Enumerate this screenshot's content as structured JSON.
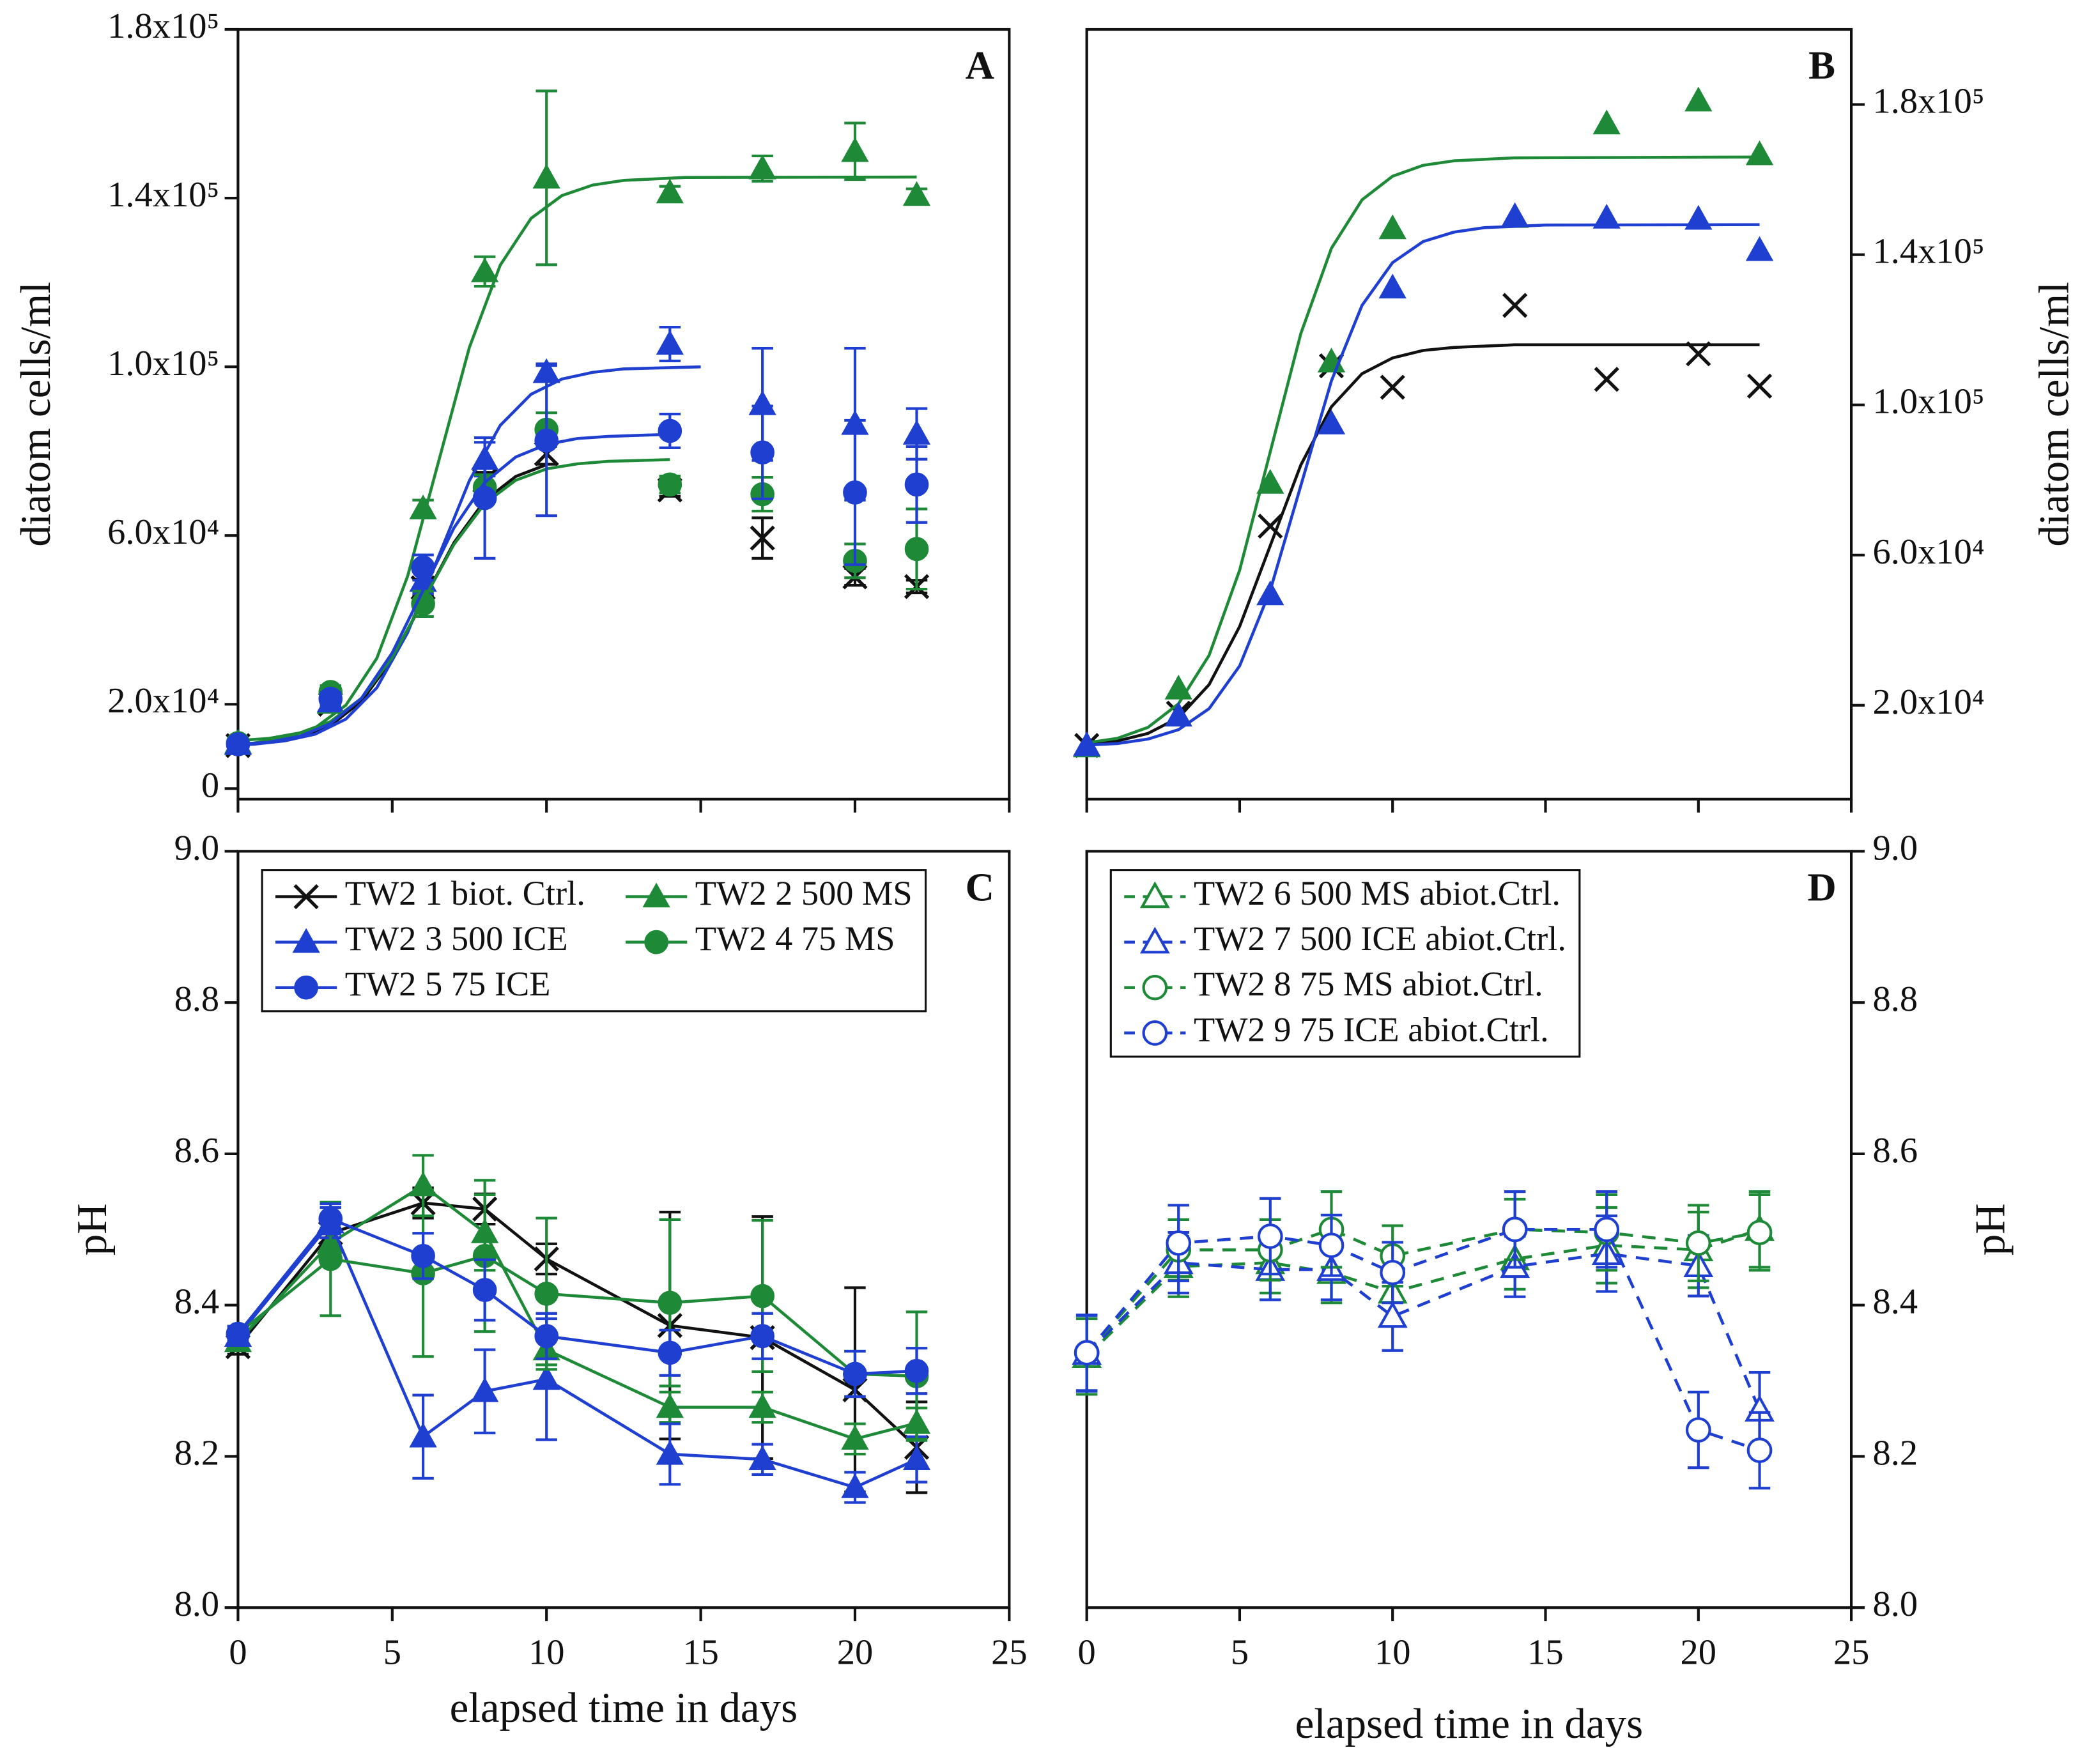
{
  "chart_data": [
    {
      "type": "scatter",
      "panel": "A",
      "ylabel": "diatom cells/ml",
      "yaxis_side": "left",
      "xtick_labels": false,
      "xlim": [
        0,
        25
      ],
      "xticks": [
        0,
        5,
        10,
        15,
        20,
        25
      ],
      "ylim": [
        -2500,
        180000
      ],
      "yticks": [
        0,
        {
          "value": 20000,
          "label": "2.0x10⁴"
        },
        {
          "value": 60000,
          "label": "6.0x10⁴"
        },
        {
          "value": 100000,
          "label": "1.0x10⁵"
        },
        {
          "value": 140000,
          "label": "1.4x10⁵"
        },
        {
          "value": 180000,
          "label": "1.8x10⁵"
        }
      ],
      "x": [
        0,
        3,
        6,
        8,
        10,
        14,
        17,
        20,
        22
      ],
      "series": [
        {
          "marker": "x",
          "color": "#111111",
          "values": [
            10200,
            20000,
            47600,
            73000,
            79400,
            70800,
            59400,
            50200,
            47900
          ],
          "errors": [
            1000,
            1000,
            2000,
            2000,
            2500,
            1500,
            4800,
            2000,
            1500
          ],
          "fit": {
            "x": [
              0,
              1,
              2,
              3,
              4,
              5,
              6,
              7,
              8,
              9,
              10
            ],
            "values": [
              10400,
              11000,
              12200,
              15000,
              20700,
              30700,
              44500,
              58300,
              68300,
              74000,
              76800
            ]
          }
        },
        {
          "marker": "triangle",
          "color": "#1e8a38",
          "values": [
            10800,
            20300,
            66400,
            122600,
            144800,
            141300,
            147000,
            151100,
            140700
          ],
          "errors": [
            1000,
            1500,
            2000,
            3500,
            20600,
            1500,
            3000,
            6700,
            1500
          ],
          "fit": {
            "x": [
              0,
              0.5,
              1.5,
              2.5,
              3.5,
              4.5,
              5.5,
              6.5,
              7.5,
              8.5,
              9.5,
              10.5,
              11.5,
              12.5,
              14.5,
              22
            ],
            "values": [
              10500,
              10800,
              11900,
              14400,
              19800,
              30900,
              50400,
              77500,
              104600,
              124100,
              135200,
              140600,
              143100,
              144200,
              144900,
              145000
            ]
          }
        },
        {
          "marker": "triangle",
          "color": "#1f3fd0",
          "values": [
            10500,
            20600,
            49200,
            78100,
            98700,
            105400,
            91100,
            86400,
            84100
          ],
          "errors": [
            1000,
            1500,
            3000,
            4000,
            2000,
            4000,
            13300,
            18000,
            6000
          ],
          "fit": {
            "x": [
              0,
              0.5,
              1.5,
              2.5,
              3.5,
              4.5,
              5.5,
              6.5,
              7.5,
              8.5,
              9.5,
              10.5,
              11.5,
              12.5,
              15
            ],
            "values": [
              10400,
              10500,
              11300,
              12900,
              16500,
              23900,
              37000,
              55000,
              73000,
              86100,
              93500,
              97100,
              98700,
              99500,
              100000
            ]
          }
        },
        {
          "marker": "circle",
          "color": "#1e8a38",
          "values": [
            10800,
            22900,
            43800,
            71400,
            85100,
            72100,
            69800,
            54000,
            56800
          ],
          "errors": [
            1000,
            1500,
            3000,
            3000,
            4000,
            2000,
            4000,
            4000,
            9500
          ],
          "fit": {
            "x": [
              0,
              1,
              2,
              3,
              4,
              5,
              6,
              7,
              8,
              9,
              10,
              11,
              12,
              14
            ],
            "values": [
              11400,
              11900,
              13200,
              15900,
              21400,
              31100,
              44500,
              57900,
              67600,
              73100,
              75800,
              77000,
              77600,
              78000
            ]
          }
        },
        {
          "marker": "circle",
          "color": "#1f3fd0",
          "values": [
            10500,
            21300,
            52400,
            68900,
            82500,
            84800,
            79700,
            70200,
            72100
          ],
          "errors": [
            1000,
            1500,
            3000,
            14300,
            17800,
            4000,
            11000,
            17100,
            9000
          ],
          "fit": {
            "x": [
              0,
              1,
              2,
              3,
              4,
              5,
              6,
              7,
              8,
              9,
              10,
              11,
              12,
              14
            ],
            "values": [
              10500,
              11000,
              12400,
              15400,
              21400,
              32200,
              47000,
              61800,
              72600,
              78600,
              81600,
              83000,
              83500,
              84000
            ]
          }
        }
      ]
    },
    {
      "type": "scatter",
      "panel": "B",
      "ylabel": "diatom cells/ml",
      "yaxis_side": "right",
      "xtick_labels": false,
      "xlim": [
        0,
        25
      ],
      "xticks": [
        0,
        5,
        10,
        15,
        20,
        25
      ],
      "ylim": [
        -5000,
        200000
      ],
      "yticks": [
        {
          "value": 20000,
          "label": "2.0x10⁴"
        },
        {
          "value": 60000,
          "label": "6.0x10⁴"
        },
        {
          "value": 100000,
          "label": "1.0x10⁵"
        },
        {
          "value": 140000,
          "label": "1.4x10⁵"
        },
        {
          "value": 180000,
          "label": "1.8x10⁵"
        }
      ],
      "x": [
        0,
        3,
        6,
        8,
        10,
        14,
        17,
        20,
        22
      ],
      "series": [
        {
          "marker": "x",
          "color": "#111111",
          "values": [
            9300,
            17900,
            67700,
            110400,
            104700,
            126500,
            106800,
            113600,
            105000
          ],
          "fit": {
            "x": [
              0,
              1,
              2,
              3,
              4,
              5,
              6,
              7,
              8,
              9,
              10,
              11,
              12,
              14,
              22
            ],
            "values": [
              9700,
              10500,
              12500,
              16700,
              25500,
              41000,
              62500,
              84000,
              99500,
              108300,
              112500,
              114500,
              115300,
              116000,
              116000
            ]
          }
        },
        {
          "marker": "triangle",
          "color": "#1e8a38",
          "values": [
            9000,
            24400,
            79200,
            111500,
            147000,
            150000,
            174900,
            181000,
            166700
          ],
          "fit": {
            "x": [
              0,
              1,
              2,
              3,
              4,
              5,
              6,
              7,
              8,
              9,
              10,
              11,
              12,
              14,
              22
            ],
            "values": [
              10000,
              11200,
              14100,
              20400,
              33300,
              56000,
              87500,
              119000,
              141700,
              154600,
              160900,
              163800,
              165000,
              165800,
              166000
            ]
          }
        },
        {
          "marker": "triangle",
          "color": "#1f3fd0",
          "values": [
            9300,
            17200,
            49500,
            95000,
            131200,
            150200,
            149800,
            149500,
            141200
          ],
          "fit": {
            "x": [
              0,
              1,
              2,
              3,
              4,
              5,
              6,
              7,
              8,
              9,
              10,
              11,
              12,
              13,
              15,
              22
            ],
            "values": [
              9400,
              9800,
              11000,
              13500,
              19100,
              30500,
              50600,
              78500,
              106400,
              126500,
              137900,
              143500,
              146000,
              147200,
              147900,
              148000
            ]
          }
        }
      ]
    },
    {
      "type": "line",
      "panel": "C",
      "ylabel": "pH",
      "xlabel": "elapsed time in days",
      "yaxis_side": "left",
      "legend": "upper left",
      "legend_columns": 2,
      "xlim": [
        0,
        25
      ],
      "xticks": [
        0,
        5,
        10,
        15,
        20,
        25
      ],
      "ylim": [
        8,
        9
      ],
      "yticks": [
        {
          "value": 8,
          "label": "8.0"
        },
        8.2,
        8.4,
        8.6,
        8.8,
        {
          "value": 9,
          "label": "9.0"
        }
      ],
      "x": [
        0,
        3,
        6,
        8,
        10,
        14,
        17,
        20,
        22
      ],
      "series": [
        {
          "name": "TW2 1 biot. Ctrl.",
          "marker": "x",
          "color": "#111111",
          "values": [
            8.345,
            8.495,
            8.535,
            8.527,
            8.461,
            8.373,
            8.357,
            8.288,
            8.212
          ],
          "errors": [
            0.01,
            0.02,
            0.02,
            0.02,
            0.02,
            0.15,
            0.16,
            0.135,
            0.06
          ]
        },
        {
          "name": "TW2 2 500 MS",
          "marker": "triangle",
          "color": "#1e8a38",
          "values": [
            8.352,
            8.482,
            8.558,
            8.496,
            8.341,
            8.265,
            8.265,
            8.223,
            8.244
          ],
          "errors": [
            0.01,
            0.02,
            0.04,
            0.05,
            0.02,
            0.02,
            0.02,
            0.02,
            0.02
          ]
        },
        {
          "name": "TW2 3 500 ICE",
          "marker": "triangle",
          "color": "#1f3fd0",
          "values": [
            8.359,
            8.509,
            8.226,
            8.286,
            8.302,
            8.203,
            8.196,
            8.159,
            8.196
          ],
          "errors": [
            0.01,
            0.02,
            0.055,
            0.055,
            0.08,
            0.04,
            0.02,
            0.02,
            0.03
          ]
        },
        {
          "name": "TW2 4 75 MS",
          "marker": "circle",
          "color": "#1e8a38",
          "values": [
            8.362,
            8.461,
            8.442,
            8.465,
            8.415,
            8.403,
            8.412,
            8.309,
            8.306
          ],
          "errors": [
            0.01,
            0.075,
            0.11,
            0.1,
            0.1,
            0.11,
            0.1,
            0.03,
            0.085
          ]
        },
        {
          "name": "TW2 5 75 ICE",
          "marker": "circle",
          "color": "#1f3fd0",
          "values": [
            8.362,
            8.514,
            8.465,
            8.42,
            8.359,
            8.337,
            8.359,
            8.309,
            8.313
          ],
          "errors": [
            0.01,
            0.02,
            0.03,
            0.04,
            0.03,
            0.03,
            0.03,
            0.03,
            0.03
          ]
        }
      ]
    },
    {
      "type": "line",
      "panel": "D",
      "ylabel": "pH",
      "xlabel": "elapsed time in days",
      "yaxis_side": "right",
      "legend": "upper left",
      "legend_columns": 1,
      "dashed": true,
      "hollow": true,
      "xlim": [
        0,
        25
      ],
      "xticks": [
        0,
        5,
        10,
        15,
        20,
        25
      ],
      "ylim": [
        8,
        9
      ],
      "yticks": [
        {
          "value": 8,
          "label": "8.0"
        },
        8.2,
        8.4,
        8.6,
        8.8,
        {
          "value": 9,
          "label": "9.0"
        }
      ],
      "x": [
        0,
        3,
        6,
        8,
        10,
        14,
        17,
        20,
        22
      ],
      "series": [
        {
          "name": "TW2 6 500 MS abiot.Ctrl.",
          "marker": "triangle",
          "color": "#1e8a38",
          "values": [
            8.332,
            8.451,
            8.456,
            8.443,
            8.417,
            8.461,
            8.479,
            8.473,
            8.5
          ],
          "errors": [
            0.05,
            0.04,
            0.04,
            0.04,
            0.04,
            0.04,
            0.05,
            0.05,
            0.05
          ]
        },
        {
          "name": "TW2 7 500 ICE abiot.Ctrl.",
          "marker": "triangle",
          "color": "#1f3fd0",
          "values": [
            8.336,
            8.456,
            8.447,
            8.447,
            8.385,
            8.451,
            8.468,
            8.452,
            8.261
          ],
          "errors": [
            0.05,
            0.04,
            0.04,
            0.04,
            0.045,
            0.04,
            0.05,
            0.04,
            0.05
          ]
        },
        {
          "name": "TW2 8 75 MS abiot.Ctrl.",
          "marker": "circle",
          "color": "#1e8a38",
          "values": [
            8.337,
            8.473,
            8.473,
            8.5,
            8.465,
            8.5,
            8.496,
            8.482,
            8.496
          ],
          "errors": [
            0.05,
            0.04,
            0.04,
            0.05,
            0.04,
            0.04,
            0.05,
            0.05,
            0.05
          ]
        },
        {
          "name": "TW2 9 75 ICE abiot.Ctrl.",
          "marker": "circle",
          "color": "#1f3fd0",
          "values": [
            8.337,
            8.482,
            8.491,
            8.479,
            8.443,
            8.5,
            8.5,
            8.235,
            8.208
          ],
          "errors": [
            0.05,
            0.05,
            0.05,
            0.04,
            0.04,
            0.05,
            0.05,
            0.05,
            0.05
          ]
        }
      ]
    }
  ]
}
